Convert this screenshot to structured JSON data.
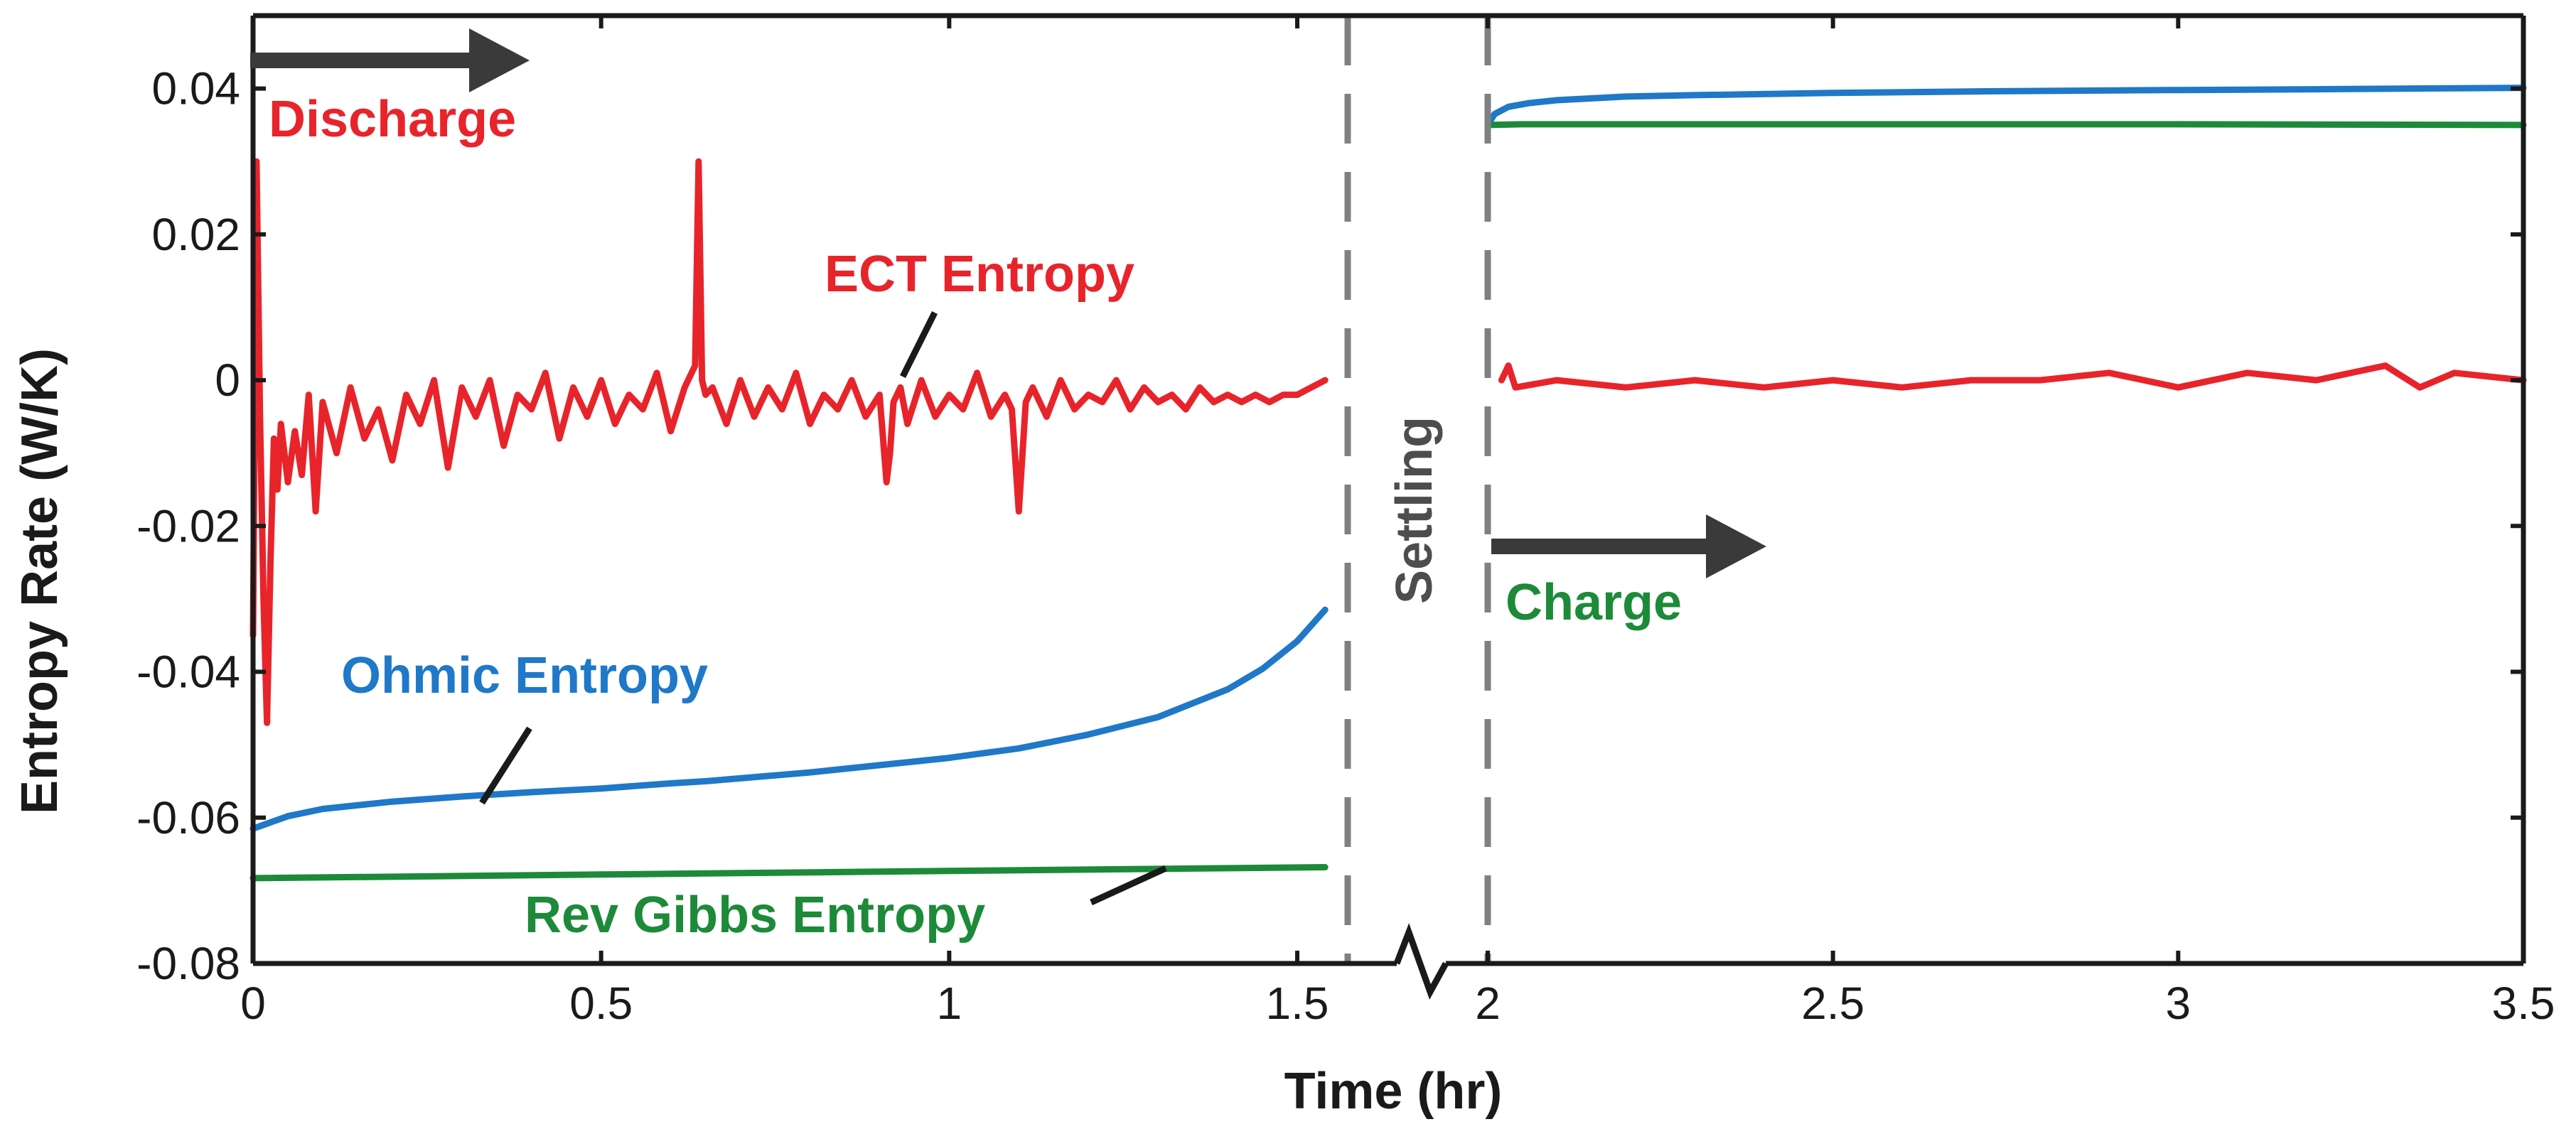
{
  "chart_data": {
    "type": "line",
    "title": "",
    "xlabel": "Time (hr)",
    "ylabel": "Entropy Rate (W/K)",
    "ylim": [
      -0.08,
      0.05
    ],
    "axis_break": {
      "from": 1.55,
      "to": 2.0
    },
    "x_ticks": [
      0,
      0.5,
      1,
      1.5,
      2,
      2.5,
      3,
      3.5
    ],
    "x_tick_labels": [
      "0",
      "0.5",
      "1",
      "1.5",
      "2",
      "2.5",
      "3",
      "3.5"
    ],
    "y_ticks": [
      -0.08,
      -0.06,
      -0.04,
      -0.02,
      0,
      0.02,
      0.04
    ],
    "y_tick_labels": [
      "-0.08",
      "-0.06",
      "-0.04",
      "-0.02",
      "0",
      "0.02",
      "0.04"
    ],
    "series": [
      {
        "name": "ECT Entropy",
        "color": "#e8242b",
        "segments": [
          {
            "x": [
              0,
              0.005,
              0.01,
              0.015,
              0.02,
              0.025,
              0.03,
              0.035,
              0.04,
              0.05,
              0.06,
              0.07,
              0.08,
              0.09,
              0.1,
              0.12,
              0.14,
              0.16,
              0.18,
              0.2,
              0.22,
              0.24,
              0.26,
              0.28,
              0.3,
              0.32,
              0.34,
              0.36,
              0.38,
              0.4,
              0.42,
              0.44,
              0.46,
              0.48,
              0.5,
              0.52,
              0.54,
              0.56,
              0.58,
              0.6,
              0.62,
              0.635,
              0.64,
              0.645,
              0.65,
              0.66,
              0.68,
              0.7,
              0.72,
              0.74,
              0.76,
              0.78,
              0.8,
              0.82,
              0.84,
              0.86,
              0.88,
              0.9,
              0.91,
              0.915,
              0.92,
              0.93,
              0.94,
              0.96,
              0.98,
              1.0,
              1.02,
              1.04,
              1.06,
              1.08,
              1.09,
              1.1,
              1.11,
              1.12,
              1.14,
              1.16,
              1.18,
              1.2,
              1.22,
              1.24,
              1.26,
              1.28,
              1.3,
              1.32,
              1.34,
              1.36,
              1.38,
              1.4,
              1.42,
              1.44,
              1.46,
              1.48,
              1.5,
              1.52,
              1.54
            ],
            "y": [
              -0.035,
              0.03,
              -0.005,
              -0.03,
              -0.047,
              -0.025,
              -0.008,
              -0.015,
              -0.006,
              -0.014,
              -0.007,
              -0.013,
              -0.002,
              -0.018,
              -0.003,
              -0.01,
              -0.001,
              -0.008,
              -0.004,
              -0.011,
              -0.002,
              -0.006,
              0.0,
              -0.012,
              -0.001,
              -0.005,
              0.0,
              -0.009,
              -0.002,
              -0.004,
              0.001,
              -0.008,
              -0.001,
              -0.005,
              0.0,
              -0.006,
              -0.002,
              -0.004,
              0.001,
              -0.007,
              -0.001,
              0.002,
              0.03,
              0.0,
              -0.002,
              -0.001,
              -0.006,
              0.0,
              -0.005,
              -0.001,
              -0.004,
              0.001,
              -0.006,
              -0.002,
              -0.004,
              0.0,
              -0.005,
              -0.002,
              -0.014,
              -0.01,
              -0.003,
              -0.001,
              -0.006,
              0.0,
              -0.005,
              -0.002,
              -0.004,
              0.001,
              -0.005,
              -0.002,
              -0.004,
              -0.018,
              -0.003,
              -0.001,
              -0.005,
              0.0,
              -0.004,
              -0.002,
              -0.003,
              0.0,
              -0.004,
              -0.001,
              -0.003,
              -0.002,
              -0.004,
              -0.001,
              -0.003,
              -0.002,
              -0.003,
              -0.002,
              -0.003,
              -0.002,
              -0.002,
              -0.001,
              0.0
            ]
          },
          {
            "x": [
              2.02,
              2.03,
              2.04,
              2.1,
              2.2,
              2.3,
              2.4,
              2.5,
              2.6,
              2.7,
              2.8,
              2.9,
              3.0,
              3.1,
              3.2,
              3.3,
              3.35,
              3.4,
              3.5
            ],
            "y": [
              0.0,
              0.002,
              -0.001,
              0.0,
              -0.001,
              0.0,
              -0.001,
              0.0,
              -0.001,
              0.0,
              0.0,
              0.001,
              -0.001,
              0.001,
              0.0,
              0.002,
              -0.001,
              0.001,
              0.0
            ]
          }
        ]
      },
      {
        "name": "Ohmic Entropy",
        "color": "#1f78c8",
        "segments": [
          {
            "x": [
              0,
              0.05,
              0.1,
              0.2,
              0.3,
              0.4,
              0.5,
              0.6,
              0.65,
              0.7,
              0.8,
              0.9,
              1.0,
              1.1,
              1.2,
              1.3,
              1.4,
              1.45,
              1.5,
              1.54
            ],
            "y": [
              -0.0615,
              -0.0598,
              -0.0588,
              -0.0578,
              -0.0571,
              -0.0565,
              -0.056,
              -0.0553,
              -0.055,
              -0.0546,
              -0.0538,
              -0.0528,
              -0.0518,
              -0.0505,
              -0.0486,
              -0.0462,
              -0.0424,
              -0.0396,
              -0.0358,
              -0.0315
            ]
          },
          {
            "x": [
              2.0,
              2.01,
              2.03,
              2.06,
              2.1,
              2.2,
              2.3,
              2.5,
              2.7,
              3.0,
              3.2,
              3.5
            ],
            "y": [
              0.035,
              0.0365,
              0.0375,
              0.038,
              0.0384,
              0.0389,
              0.0391,
              0.0394,
              0.0396,
              0.0398,
              0.0399,
              0.0401
            ]
          }
        ]
      },
      {
        "name": "Rev Gibbs Entropy",
        "color": "#1d8a3a",
        "segments": [
          {
            "x": [
              0,
              0.5,
              1.0,
              1.54
            ],
            "y": [
              -0.0683,
              -0.0678,
              -0.0673,
              -0.0668
            ]
          },
          {
            "x": [
              2.0,
              2.05,
              2.5,
              3.0,
              3.5
            ],
            "y": [
              0.035,
              0.0351,
              0.0351,
              0.0351,
              0.035
            ]
          }
        ]
      }
    ],
    "annotations": {
      "discharge": "Discharge",
      "charge": "Charge",
      "settling": "Settling",
      "ect_entropy": "ECT Entropy",
      "ohmic_entropy": "Ohmic Entropy",
      "rev_gibbs_entropy": "Rev Gibbs Entropy"
    },
    "colors": {
      "discharge": "#e8242b",
      "charge": "#1d8a3a",
      "settling": "#4d4d4d",
      "arrow": "#3a3a3a",
      "axis": "#1a1a1a",
      "dashed_line": "#808080"
    }
  }
}
